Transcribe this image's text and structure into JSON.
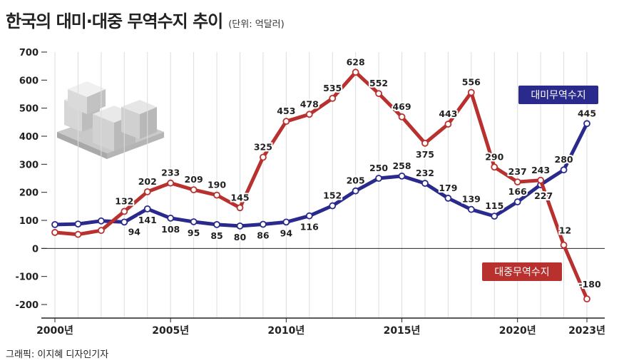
{
  "title": "한국의 대미·대중 무역수지 추이",
  "unit": "(단위: 억달러)",
  "credit": "그래픽: 이지혜 디자인기자",
  "colors": {
    "us": "#2a2a8c",
    "china": "#b8312f",
    "grid": "#dddddd",
    "axis": "#222222"
  },
  "chart_data": {
    "type": "line",
    "x": [
      2000,
      2001,
      2002,
      2003,
      2004,
      2005,
      2006,
      2007,
      2008,
      2009,
      2010,
      2011,
      2012,
      2013,
      2014,
      2015,
      2016,
      2017,
      2018,
      2019,
      2020,
      2021,
      2022,
      2023
    ],
    "x_tick_labels": [
      {
        "x": 2000,
        "label": "2000년"
      },
      {
        "x": 2005,
        "label": "2005년"
      },
      {
        "x": 2010,
        "label": "2010년"
      },
      {
        "x": 2015,
        "label": "2015년"
      },
      {
        "x": 2020,
        "label": "2020년"
      },
      {
        "x": 2023,
        "label": "2023년"
      }
    ],
    "ylim": [
      -200,
      700
    ],
    "y_ticks": [
      -200,
      -100,
      0,
      100,
      200,
      300,
      400,
      500,
      600,
      700
    ],
    "grid": "vertical",
    "series": [
      {
        "name": "대미무역수지",
        "color": "#2a2a8c",
        "values": [
          85,
          87,
          98,
          94,
          141,
          108,
          95,
          85,
          80,
          86,
          94,
          116,
          152,
          205,
          250,
          258,
          232,
          179,
          139,
          115,
          166,
          227,
          280,
          445
        ],
        "labels": [
          null,
          null,
          null,
          "94",
          "141",
          "108",
          "95",
          "85",
          "80",
          "86",
          "94",
          "116",
          "152",
          "205",
          "250",
          "258",
          "232",
          "179",
          "139",
          "115",
          "166",
          "227",
          "280",
          "445"
        ]
      },
      {
        "name": "대중무역수지",
        "color": "#b8312f",
        "values": [
          57,
          50,
          64,
          132,
          202,
          233,
          209,
          190,
          145,
          325,
          453,
          478,
          535,
          628,
          552,
          469,
          375,
          443,
          556,
          290,
          237,
          243,
          12,
          -180
        ],
        "labels": [
          null,
          null,
          null,
          "132",
          "202",
          "233",
          "209",
          "190",
          "145",
          "325",
          "453",
          "478",
          "535",
          "628",
          "552",
          "469",
          "375",
          "443",
          "556",
          "290",
          "237",
          "243",
          "12",
          "-180"
        ]
      }
    ]
  }
}
